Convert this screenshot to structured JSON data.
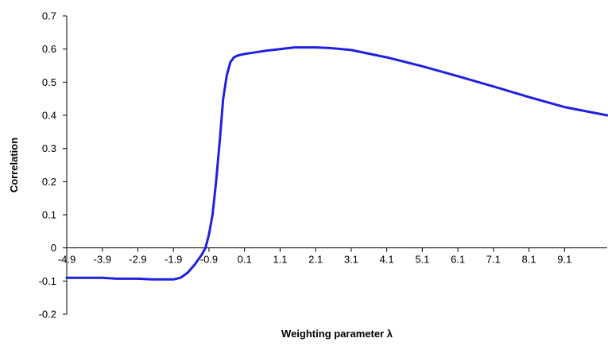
{
  "chart_data": {
    "type": "line",
    "title": "",
    "xlabel": "Weighting parameter λ",
    "ylabel": "Correlation",
    "xlim": [
      -4.9,
      10.3
    ],
    "ylim": [
      -0.2,
      0.7
    ],
    "x_ticks": [
      -4.9,
      -3.9,
      -2.9,
      -1.9,
      -0.9,
      0.1,
      1.1,
      2.1,
      3.1,
      4.1,
      5.1,
      6.1,
      7.1,
      8.1,
      9.1
    ],
    "x_tick_labels": [
      "-4.9",
      "-3.9",
      "-2.9",
      "-1.9",
      "-0.9",
      "0.1",
      "1.1",
      "2.1",
      "3.1",
      "4.1",
      "5.1",
      "6.1",
      "7.1",
      "8.1",
      "9.1"
    ],
    "y_ticks": [
      -0.2,
      -0.1,
      0,
      0.1,
      0.2,
      0.3,
      0.4,
      0.5,
      0.6,
      0.7
    ],
    "y_tick_labels": [
      "-0.2",
      "-0.1",
      "0",
      "0.1",
      "0.2",
      "0.3",
      "0.4",
      "0.5",
      "0.6",
      "0.7"
    ],
    "grid": false,
    "legend": "none",
    "line_color": "#2020E0",
    "series": [
      {
        "name": "",
        "x": [
          -4.9,
          -3.9,
          -3.5,
          -2.9,
          -2.5,
          -1.9,
          -1.7,
          -1.5,
          -1.3,
          -1.1,
          -1.0,
          -0.9,
          -0.8,
          -0.7,
          -0.6,
          -0.5,
          -0.4,
          -0.3,
          -0.2,
          -0.1,
          0.0,
          0.1,
          0.4,
          0.7,
          1.1,
          1.5,
          2.1,
          2.5,
          3.1,
          4.1,
          5.1,
          6.1,
          7.1,
          8.1,
          9.1,
          10.3
        ],
        "y": [
          -0.09,
          -0.09,
          -0.093,
          -0.093,
          -0.095,
          -0.095,
          -0.09,
          -0.075,
          -0.05,
          -0.02,
          0.0,
          0.04,
          0.1,
          0.2,
          0.32,
          0.45,
          0.52,
          0.56,
          0.575,
          0.58,
          0.583,
          0.585,
          0.59,
          0.595,
          0.6,
          0.605,
          0.605,
          0.603,
          0.597,
          0.575,
          0.548,
          0.518,
          0.487,
          0.455,
          0.425,
          0.4
        ]
      }
    ]
  }
}
